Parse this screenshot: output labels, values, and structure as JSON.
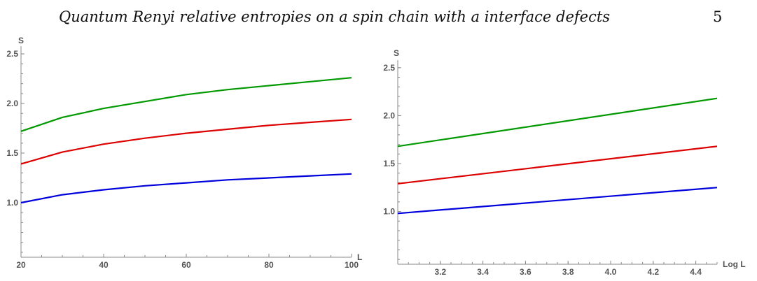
{
  "page": {
    "title": "Quantum Renyi relative entropies on a spin chain with a interface defects",
    "page_number": "5"
  },
  "chart_data": [
    {
      "type": "line",
      "xlabel": "L",
      "ylabel": "S",
      "xlim": [
        20,
        100
      ],
      "ylim": [
        0.45,
        2.55
      ],
      "xticks": [
        "20",
        "40",
        "60",
        "80",
        "100"
      ],
      "yticks": [
        "1.0",
        "1.5",
        "2.0",
        "2.5"
      ],
      "xtick_values": [
        20,
        40,
        60,
        80,
        100
      ],
      "ytick_values": [
        1.0,
        1.5,
        2.0,
        2.5
      ],
      "grid": false,
      "series": [
        {
          "color": "#0000dd",
          "x": [
            20,
            30,
            40,
            50,
            60,
            70,
            80,
            90,
            100
          ],
          "y": [
            1.0,
            1.08,
            1.13,
            1.17,
            1.2,
            1.23,
            1.25,
            1.27,
            1.29
          ]
        },
        {
          "color": "#dd0000",
          "x": [
            20,
            30,
            40,
            50,
            60,
            70,
            80,
            90,
            100
          ],
          "y": [
            1.39,
            1.51,
            1.59,
            1.65,
            1.7,
            1.74,
            1.78,
            1.81,
            1.84
          ]
        },
        {
          "color": "#009900",
          "x": [
            20,
            30,
            40,
            50,
            60,
            70,
            80,
            90,
            100
          ],
          "y": [
            1.72,
            1.86,
            1.95,
            2.02,
            2.09,
            2.14,
            2.18,
            2.22,
            2.26
          ]
        }
      ]
    },
    {
      "type": "line",
      "xlabel": "Log L",
      "ylabel": "S",
      "xlim": [
        3.0,
        4.5
      ],
      "ylim": [
        0.45,
        2.55
      ],
      "xticks": [
        "3.2",
        "3.4",
        "3.6",
        "3.8",
        "4.0",
        "4.2",
        "4.4"
      ],
      "yticks": [
        "1.0",
        "1.5",
        "2.0",
        "2.5"
      ],
      "xtick_values": [
        3.2,
        3.4,
        3.6,
        3.8,
        4.0,
        4.2,
        4.4
      ],
      "ytick_values": [
        1.0,
        1.5,
        2.0,
        2.5
      ],
      "grid": false,
      "series": [
        {
          "color": "#0000dd",
          "x": [
            3.0,
            4.5
          ],
          "y": [
            0.98,
            1.25
          ]
        },
        {
          "color": "#dd0000",
          "x": [
            3.0,
            4.5
          ],
          "y": [
            1.29,
            1.68
          ]
        },
        {
          "color": "#009900",
          "x": [
            3.0,
            4.5
          ],
          "y": [
            1.68,
            2.18
          ]
        }
      ]
    }
  ]
}
